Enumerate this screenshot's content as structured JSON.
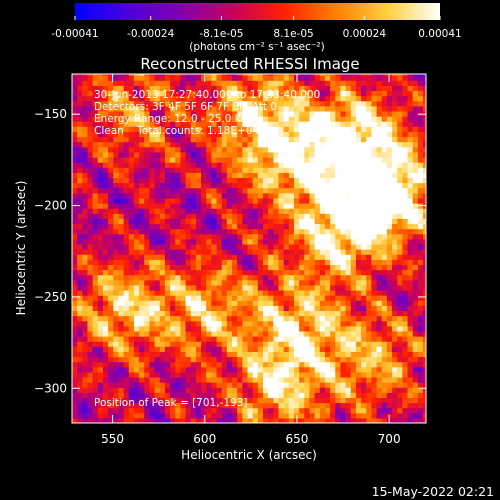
{
  "colorbar": {
    "tick_labels": [
      "-0.00041",
      "-0.00024",
      "-8.1e-05",
      "8.1e-05",
      "0.00024",
      "0.00041"
    ],
    "tick_values": [
      -0.00041,
      -0.00024,
      -8.1e-05,
      8.1e-05,
      0.00024,
      0.00041
    ],
    "range": [
      -0.00041,
      0.00041
    ],
    "unit_label": "(photons cm⁻² s⁻¹ asec⁻²)",
    "colormap": [
      "#0000ff",
      "#4b00e0",
      "#8000b0",
      "#c80060",
      "#ff2000",
      "#ff8000",
      "#ffd040",
      "#ffffff"
    ]
  },
  "chart_data": {
    "type": "heatmap",
    "title": "Reconstructed RHESSI Image",
    "xlabel": "Heliocentric X (arcsec)",
    "ylabel": "Heliocentric Y (arcsec)",
    "xlim": [
      528,
      720
    ],
    "ylim": [
      -319,
      -128
    ],
    "xticks": [
      550,
      600,
      650,
      700
    ],
    "yticks": [
      -150,
      -200,
      -250,
      -300
    ],
    "xtick_labels": [
      "550",
      "600",
      "650",
      "700"
    ],
    "ytick_labels": [
      "−150",
      "−200",
      "−250",
      "−300"
    ],
    "info_lines": [
      "30-Jun-2013 17:27:40.000 to 17:33:40.000",
      "Detectors: 3F 4F 5F 6F 7F 8F, Att 0",
      "Energy Range: 12.0 - 25.0 keV",
      "Clean    Total counts: 1.18E+04"
    ],
    "peak_label": "Position of Peak = [701,-193]",
    "peak": [
      701,
      -193
    ],
    "bright_regions": [
      {
        "x": 698,
        "y": -195,
        "amp": 1.0
      },
      {
        "x": 680,
        "y": -165,
        "amp": 0.85
      },
      {
        "x": 670,
        "y": -215,
        "amp": 0.75
      },
      {
        "x": 645,
        "y": -175,
        "amp": 0.7
      },
      {
        "x": 625,
        "y": -150,
        "amp": 0.6
      },
      {
        "x": 555,
        "y": -258,
        "amp": 0.65
      },
      {
        "x": 600,
        "y": -258,
        "amp": 0.55
      },
      {
        "x": 650,
        "y": -265,
        "amp": 0.6
      },
      {
        "x": 640,
        "y": -300,
        "amp": 0.65
      },
      {
        "x": 690,
        "y": -285,
        "amp": 0.55
      },
      {
        "x": 560,
        "y": -150,
        "amp": 0.45
      }
    ]
  },
  "timestamp": "15-May-2022 02:21"
}
